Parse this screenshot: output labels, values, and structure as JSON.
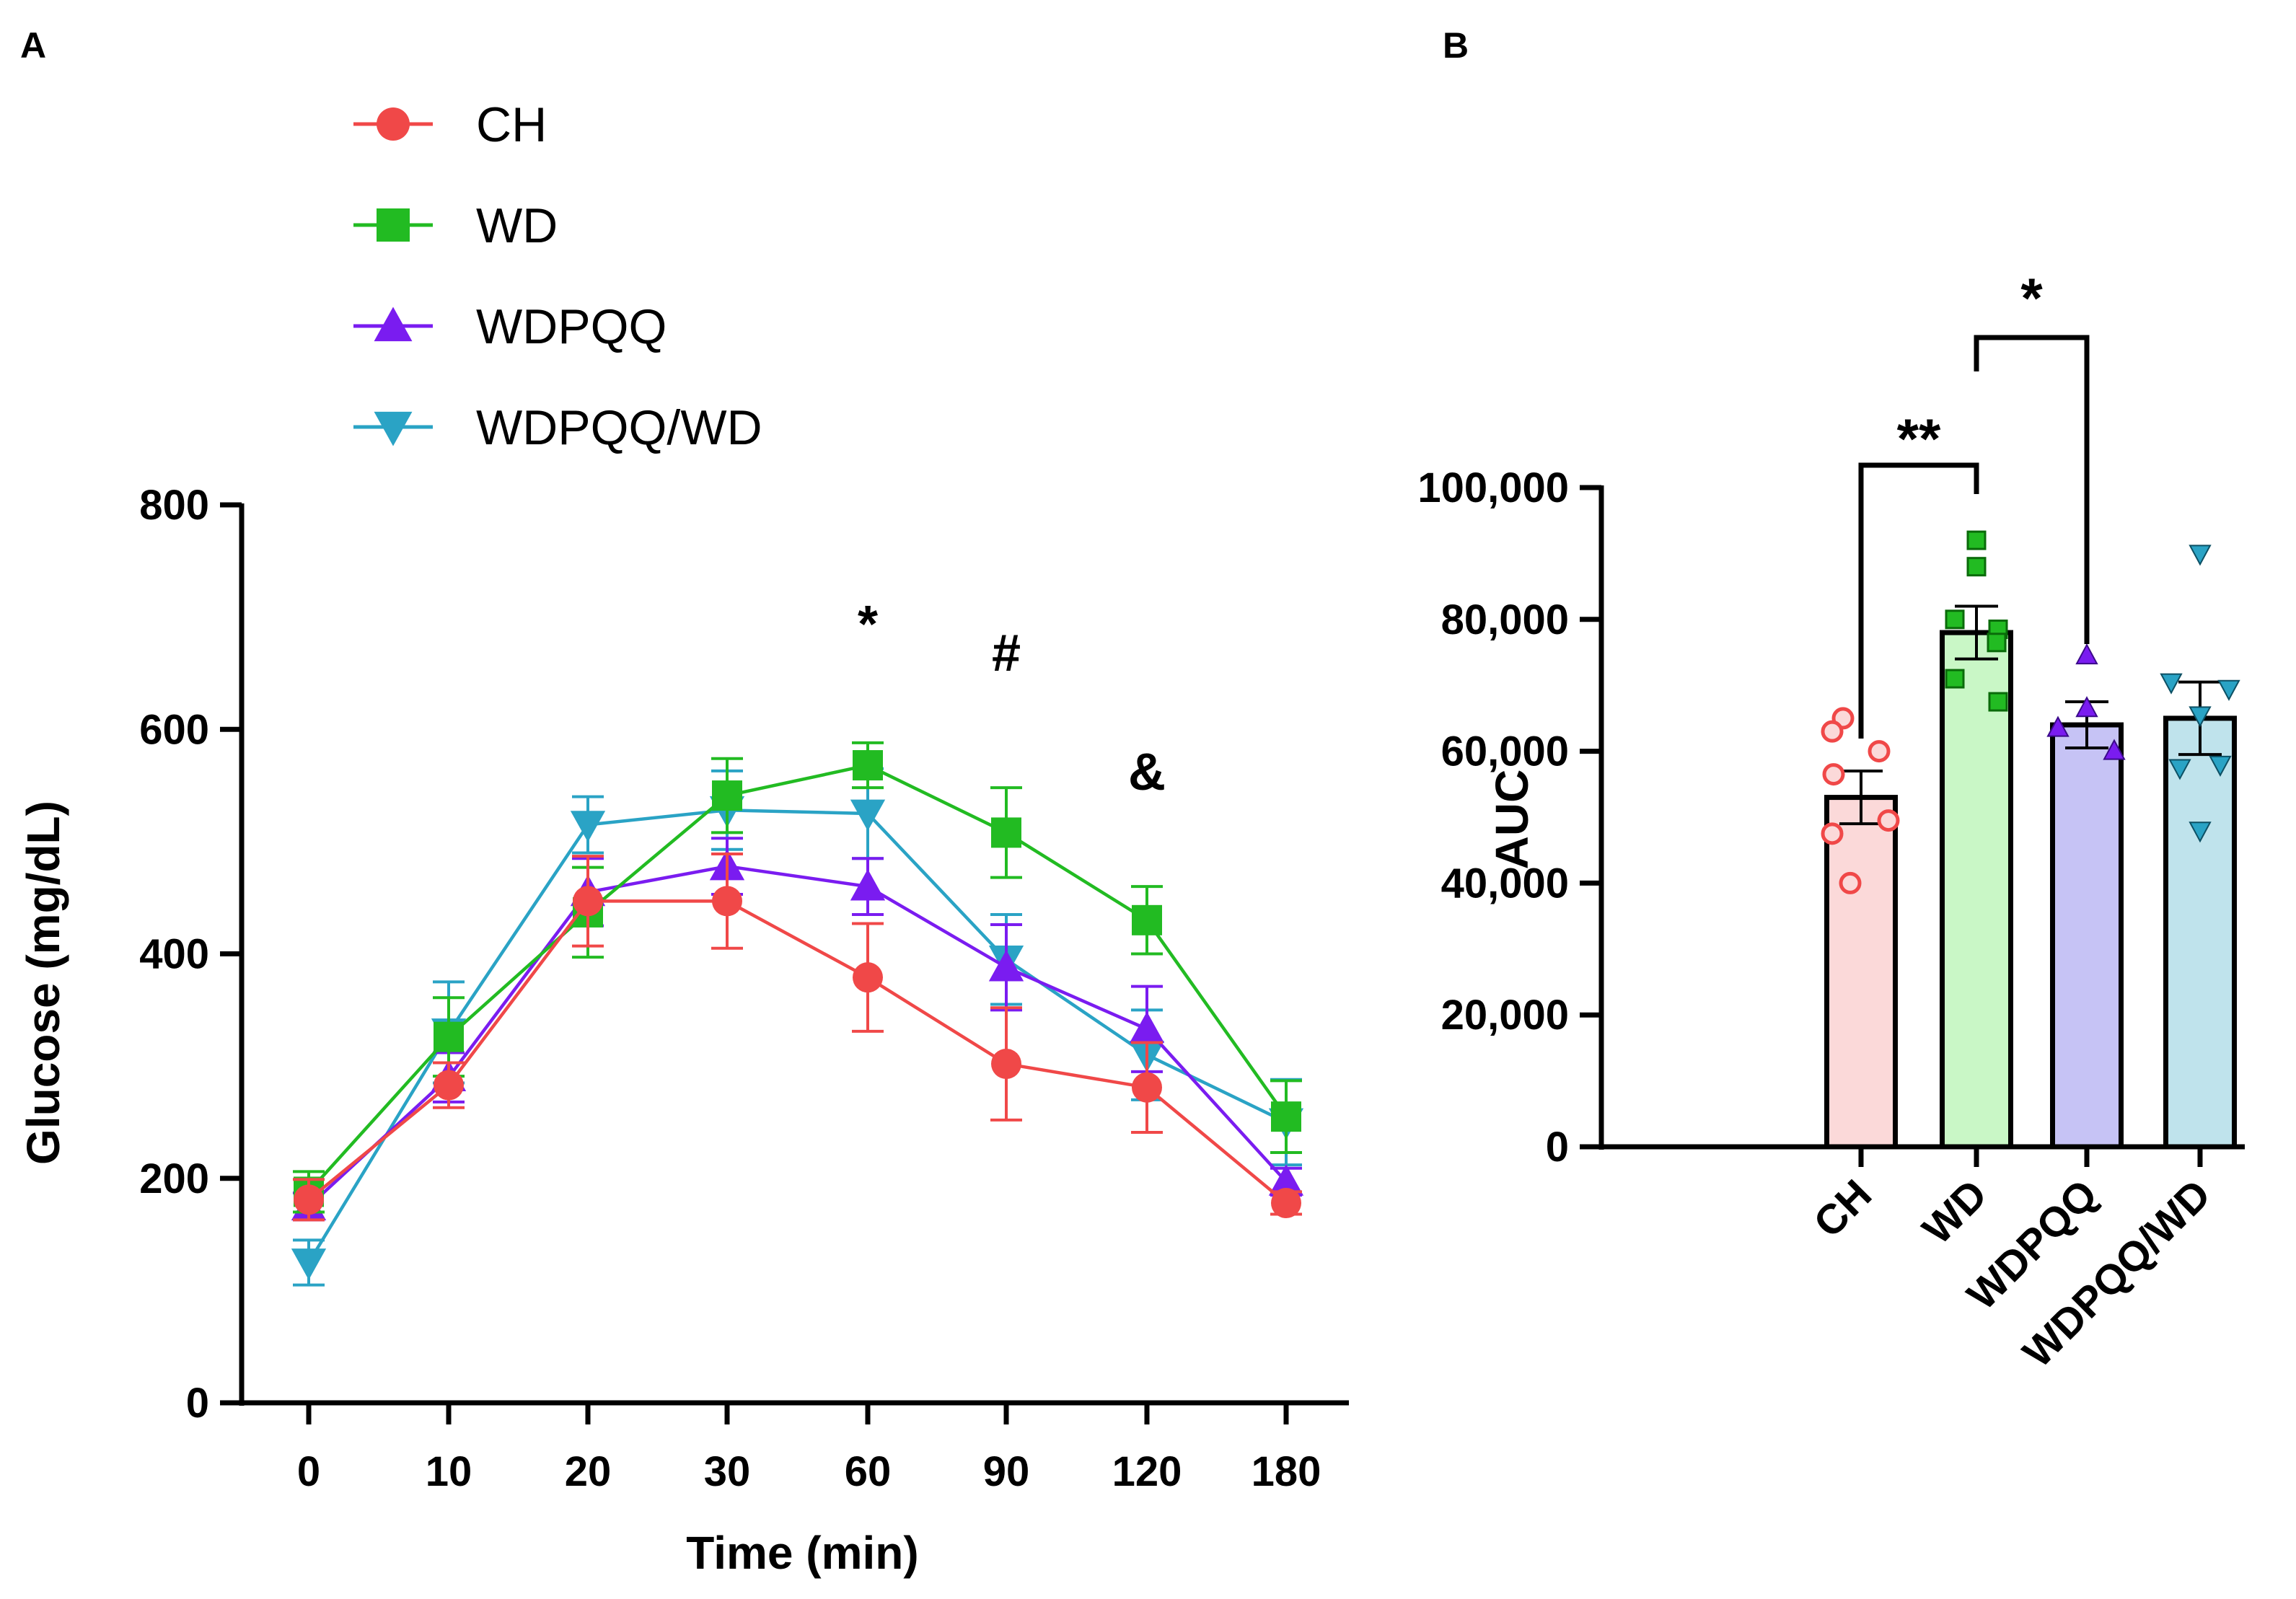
{
  "panels": {
    "a": "A",
    "b": "B"
  },
  "chart_data": [
    {
      "type": "line",
      "title": "",
      "xlabel": "Time (min)",
      "ylabel": "Glucose (mg/dL)",
      "categories": [
        "0",
        "10",
        "20",
        "30",
        "60",
        "90",
        "120",
        "180"
      ],
      "ylim": [
        0,
        800
      ],
      "yticks": [
        "0",
        "200",
        "400",
        "600",
        "800"
      ],
      "legend_placement": "top-left",
      "series": [
        {
          "name": "CH",
          "color": "#f04848",
          "marker": "circle",
          "values": [
            181,
            283,
            447,
            447,
            379,
            302,
            281,
            178
          ],
          "errors": [
            18,
            20,
            40,
            42,
            48,
            50,
            40,
            10
          ]
        },
        {
          "name": "WD",
          "color": "#22bb22",
          "marker": "square",
          "values": [
            188,
            326,
            437,
            541,
            568,
            508,
            430,
            255
          ],
          "errors": [
            18,
            35,
            40,
            33,
            20,
            40,
            30,
            32
          ]
        },
        {
          "name": "WDPQQ",
          "color": "#7a1cf0",
          "marker": "triangle-up",
          "values": [
            175,
            290,
            455,
            478,
            460,
            388,
            333,
            197
          ],
          "errors": [
            12,
            22,
            30,
            25,
            25,
            38,
            38,
            12
          ]
        },
        {
          "name": "WDPQQ/WD",
          "color": "#2aa3c5",
          "marker": "triangle-down",
          "values": [
            125,
            330,
            515,
            528,
            525,
            395,
            310,
            250
          ],
          "errors": [
            20,
            45,
            25,
            35,
            40,
            40,
            40,
            38
          ]
        }
      ],
      "annotations": [
        {
          "text": "*",
          "x": "60"
        },
        {
          "text": "#",
          "x": "90"
        },
        {
          "text": "&",
          "x": "120"
        }
      ]
    },
    {
      "type": "bar",
      "title": "",
      "xlabel": "",
      "ylabel": "AUC",
      "categories": [
        "CH",
        "WD",
        "WDPQQ",
        "WDPQQ/WD"
      ],
      "ylim": [
        0,
        100000
      ],
      "yticks": [
        "0",
        "20,000",
        "40,000",
        "60,000",
        "80,000",
        "100,000"
      ],
      "values": [
        53000,
        78000,
        64000,
        65000
      ],
      "errors": [
        4000,
        4000,
        3500,
        5500
      ],
      "fills": [
        "#fbd9d9",
        "#c9f7c6",
        "#c6c3f5",
        "#bfe3ec"
      ],
      "point_colors": [
        "#f04848",
        "#22bb22",
        "#7a1cf0",
        "#2aa3c5"
      ],
      "points": [
        [
          65000,
          63000,
          60000,
          56500,
          49500,
          47500,
          40000
        ],
        [
          92000,
          88000,
          80000,
          78500,
          76500,
          71000,
          67500
        ],
        [
          74500,
          66500,
          63500,
          60000
        ],
        [
          90000,
          70500,
          69500,
          65500,
          58000,
          57500,
          48000
        ]
      ],
      "significance": [
        {
          "from": "CH",
          "to": "WD",
          "label": "**"
        },
        {
          "from": "WD",
          "to": "WDPQQ",
          "label": "*"
        }
      ]
    }
  ]
}
